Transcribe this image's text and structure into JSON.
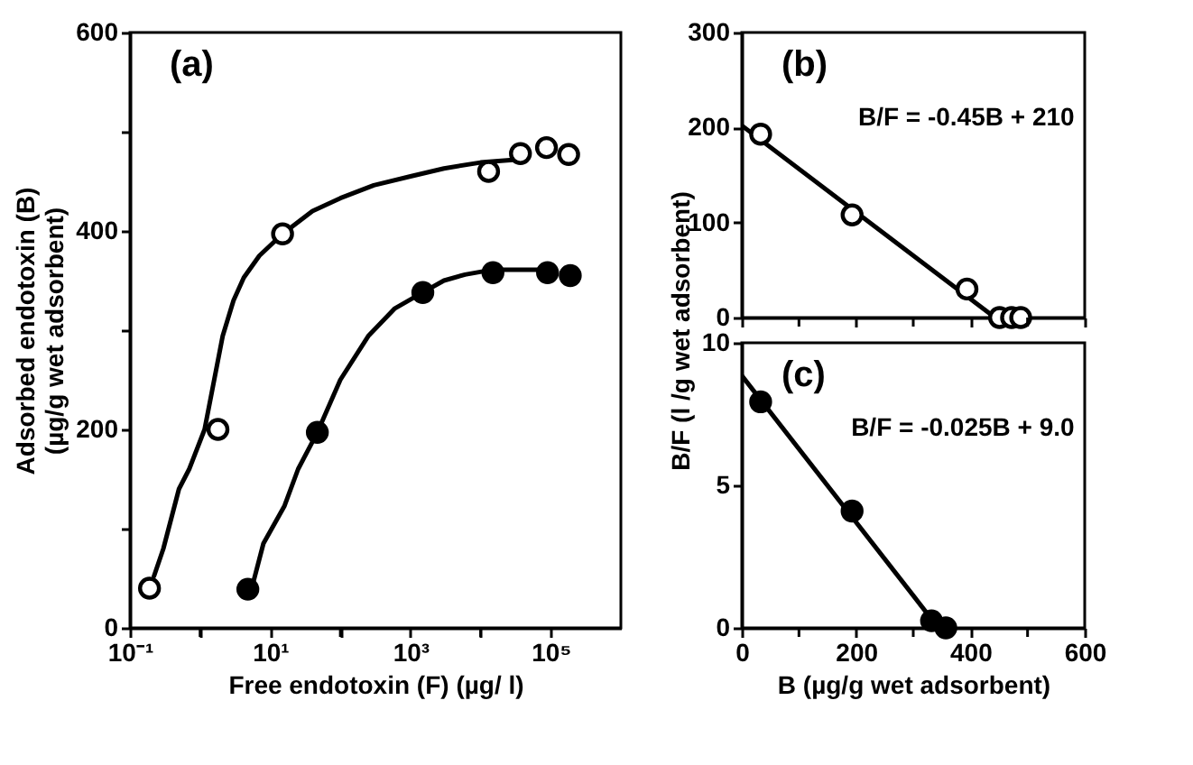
{
  "chart_data": [
    {
      "type": "scatter",
      "xlabel": "Free endotoxin  (F)  (µg/ l)",
      "ylabel": "Adsorbed endotoxin  (B)\n(µg/g wet adsorbent)",
      "annotations": [
        "(a)"
      ],
      "log": "x",
      "marker": "circle",
      "grid": false,
      "xlim": [
        0.1,
        1000000
      ],
      "xticks": [
        {
          "value": 0.1,
          "label": "10⁻¹"
        },
        {
          "value": 1,
          "label": null
        },
        {
          "value": 10,
          "label": "10¹"
        },
        {
          "value": 100,
          "label": null
        },
        {
          "value": 1000,
          "label": "10³"
        },
        {
          "value": 10000,
          "label": null
        },
        {
          "value": 100000,
          "label": "10⁵"
        }
      ],
      "ylim": [
        0,
        600
      ],
      "yticks": [
        0,
        {
          "value": 100,
          "label": null
        },
        200,
        {
          "value": 300,
          "label": null
        },
        400,
        {
          "value": 500,
          "label": null
        },
        600
      ],
      "series": [
        {
          "type": "line",
          "marker": "none",
          "line_style": "solid",
          "color": "#000000",
          "x": [
            0.22,
            0.3,
            0.5,
            0.7,
            1.16,
            2.1,
            3,
            4.2,
            7,
            15,
            40,
            100,
            300,
            1000,
            3000,
            10000,
            35000
          ],
          "values": [
            52,
            80,
            140,
            160,
            200,
            294,
            330,
            353,
            375,
            397,
            420,
            433,
            446,
            455,
            463,
            469,
            472
          ]
        },
        {
          "type": "line",
          "marker": "none",
          "line_style": "solid",
          "color": "#000000",
          "x": [
            5.6,
            8,
            16,
            25,
            47,
            100,
            250,
            600,
            1500,
            3000,
            6000,
            15000,
            100000
          ],
          "values": [
            43,
            85,
            123,
            160,
            197,
            250,
            294,
            322,
            338,
            350,
            356,
            361,
            361
          ]
        },
        {
          "color": "#ffffff",
          "x": [
            0.19,
            1.8,
            15,
            13000,
            37000,
            87000,
            180000
          ],
          "values": [
            40,
            200,
            397,
            460,
            478,
            484,
            477
          ]
        },
        {
          "color": "#000000",
          "x": [
            4.8,
            47,
            1500,
            15000,
            90000,
            190000
          ],
          "values": [
            39,
            197,
            338,
            358,
            358,
            355
          ]
        }
      ]
    },
    {
      "type": "scatter",
      "annotations": [
        "(b)",
        "B/F = -0.45B + 210"
      ],
      "marker": "circle",
      "grid": false,
      "tick_labels": "y",
      "xlim": [
        0,
        600
      ],
      "xticks": [
        0,
        {
          "value": 100,
          "label": null
        },
        200,
        {
          "value": 300,
          "label": null
        },
        400,
        {
          "value": 500,
          "label": null
        },
        600
      ],
      "ylim": [
        0,
        300
      ],
      "yticks": [
        0,
        100,
        200,
        300
      ],
      "series": [
        {
          "type": "line",
          "marker": "none",
          "line_style": "solid",
          "color": "#000000",
          "x": [
            0,
            443
          ],
          "values": [
            202,
            0
          ]
        },
        {
          "color": "#ffffff",
          "x": [
            33,
            193,
            394,
            451,
            472,
            488
          ],
          "values": [
            193,
            108,
            30,
            0,
            0,
            0
          ]
        }
      ]
    },
    {
      "type": "scatter",
      "xlabel": "B (µg/g wet adsorbent)",
      "ylabel": "B/F (l /g wet adsorbent)",
      "annotations": [
        "(c)",
        "B/F =  -0.025B + 9.0"
      ],
      "marker": "circle",
      "grid": false,
      "xlim": [
        0,
        600
      ],
      "xticks": [
        0,
        {
          "value": 100,
          "label": null
        },
        200,
        {
          "value": 300,
          "label": null
        },
        400,
        {
          "value": 500,
          "label": null
        },
        600
      ],
      "ylim": [
        0,
        10
      ],
      "yticks": [
        0,
        5,
        10
      ],
      "series": [
        {
          "type": "line",
          "marker": "none",
          "line_style": "solid",
          "color": "#000000",
          "x": [
            0,
            344
          ],
          "values": [
            8.85,
            0
          ]
        },
        {
          "color": "#000000",
          "x": [
            33,
            193,
            332,
            357
          ],
          "values": [
            7.93,
            4.1,
            0.25,
            0
          ]
        }
      ]
    }
  ]
}
